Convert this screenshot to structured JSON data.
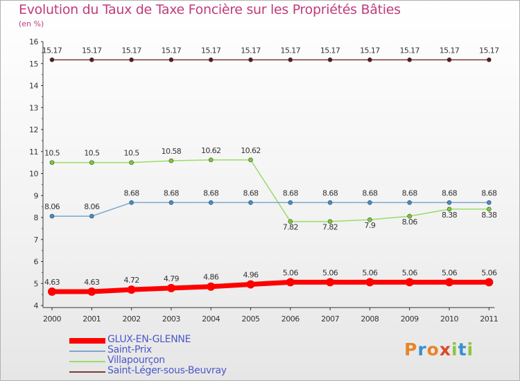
{
  "title": "Evolution du Taux de Taxe Foncière sur les Propriétés Bâties",
  "unit_label": "(en %)",
  "logo": {
    "text": "Proxiti",
    "colors": [
      "#e8842a",
      "#3a8fd0",
      "#e8842a",
      "#d84a2a",
      "#8cc63e",
      "#3a8fd0",
      "#8cc63e"
    ]
  },
  "chart_data": {
    "type": "line",
    "title": "Evolution du Taux de Taxe Foncière sur les Propriétés Bâties",
    "ylabel": "(en %)",
    "xlabel": "",
    "ylim": [
      4,
      16
    ],
    "yticks": [
      4,
      5,
      6,
      7,
      8,
      9,
      10,
      11,
      12,
      13,
      14,
      15,
      16
    ],
    "x": [
      "2000",
      "2001",
      "2002",
      "2003",
      "2004",
      "2005",
      "2006",
      "2007",
      "2008",
      "2009",
      "2010",
      "2011"
    ],
    "series": [
      {
        "name": "GLUX-EN-GLENNE",
        "color": "#ff0000",
        "marker": "#ff0000",
        "width": 7,
        "radius": 6,
        "values": [
          4.63,
          4.63,
          4.72,
          4.79,
          4.86,
          4.96,
          5.06,
          5.06,
          5.06,
          5.06,
          5.06,
          5.06
        ],
        "labels": [
          "4.63",
          "4.63",
          "4.72",
          "4.79",
          "4.86",
          "4.96",
          "5.06",
          "5.06",
          "5.06",
          "5.06",
          "5.06",
          "5.06"
        ]
      },
      {
        "name": "Saint-Prix",
        "color": "#7aa7cc",
        "marker": "#3a8fd0",
        "width": 1.5,
        "radius": 3,
        "values": [
          8.06,
          8.06,
          8.68,
          8.68,
          8.68,
          8.68,
          8.68,
          8.68,
          8.68,
          8.68,
          8.68,
          8.68
        ],
        "labels": [
          "8.06",
          "8.06",
          "8.68",
          "8.68",
          "8.68",
          "8.68",
          "8.68",
          "8.68",
          "8.68",
          "8.68",
          "8.68",
          "8.68"
        ]
      },
      {
        "name": "Villapourçon",
        "color": "#99dd66",
        "marker": "#7acc30",
        "width": 1.5,
        "radius": 3,
        "values": [
          10.5,
          10.5,
          10.5,
          10.58,
          10.62,
          10.62,
          7.82,
          7.82,
          7.9,
          8.06,
          8.38,
          8.38
        ],
        "labels": [
          "10.5",
          "10.5",
          "10.5",
          "10.58",
          "10.62",
          "10.62",
          "7.82",
          "7.82",
          "7.9",
          "8.06",
          "8.38",
          "8.38"
        ]
      },
      {
        "name": "Saint-Léger-sous-Beuvray",
        "color": "#7a3a3a",
        "marker": "#5a1a1a",
        "width": 1.5,
        "radius": 3,
        "values": [
          15.17,
          15.17,
          15.17,
          15.17,
          15.17,
          15.17,
          15.17,
          15.17,
          15.17,
          15.17,
          15.17,
          15.17
        ],
        "labels": [
          "15.17",
          "15.17",
          "15.17",
          "15.17",
          "15.17",
          "15.17",
          "15.17",
          "15.17",
          "15.17",
          "15.17",
          "15.17",
          "15.17"
        ]
      }
    ]
  }
}
